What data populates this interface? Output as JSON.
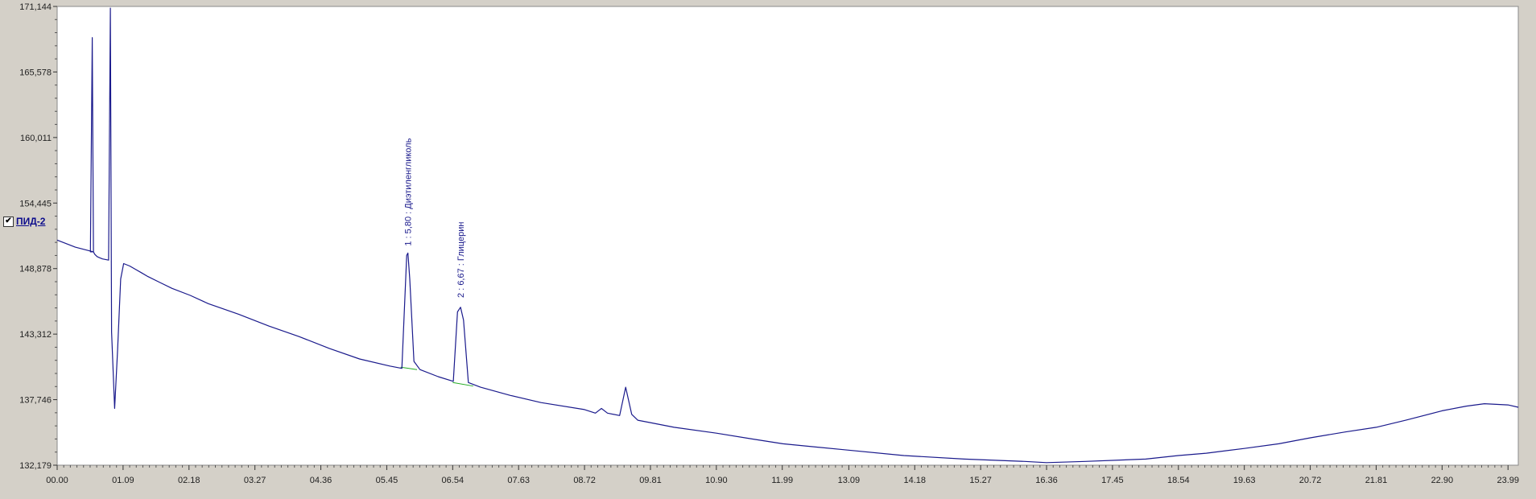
{
  "channel": {
    "label": "ПИД-2",
    "checked": true,
    "check_glyph": "✔"
  },
  "colors": {
    "background": "#d4d0c8",
    "plot_bg": "#ffffff",
    "signal": "#1a1a8c",
    "baseline": "#22aa22"
  },
  "chart_data": {
    "type": "line",
    "xlim": [
      0.0,
      24.16
    ],
    "ylim": [
      132.179,
      171.144
    ],
    "x_ticks": [
      "00.00",
      "01.09",
      "02.18",
      "03.27",
      "04.36",
      "05.45",
      "06.54",
      "07.63",
      "08.72",
      "09.81",
      "10.90",
      "11.99",
      "13.09",
      "14.18",
      "15.27",
      "16.36",
      "17.45",
      "18.54",
      "19.63",
      "20.72",
      "21.81",
      "22.90",
      "23.99"
    ],
    "y_ticks": [
      "171,144",
      "165,578",
      "160,011",
      "154,445",
      "148,878",
      "143,312",
      "137,746",
      "132,179"
    ],
    "grid": false,
    "series": [
      {
        "color": "#1a1a8c",
        "x": [
          0.0,
          0.3,
          0.6,
          0.55,
          0.58,
          0.6,
          0.62,
          0.66,
          0.7,
          0.75,
          0.85,
          0.88,
          0.9,
          0.95,
          1.0,
          1.05,
          1.1,
          1.2,
          1.3,
          1.4,
          1.5,
          1.7,
          1.9,
          2.2,
          2.5,
          3.0,
          3.5,
          4.0,
          4.5,
          5.0,
          5.5,
          5.7,
          5.78,
          5.8,
          5.83,
          5.9,
          6.0,
          6.3,
          6.55,
          6.62,
          6.67,
          6.72,
          6.8,
          7.0,
          7.5,
          8.0,
          8.72,
          8.9,
          9.0,
          9.1,
          9.3,
          9.4,
          9.5,
          9.6,
          9.8,
          10.2,
          10.9,
          11.5,
          12.0,
          13.0,
          14.0,
          15.0,
          16.0,
          16.36,
          17.0,
          18.0,
          18.54,
          19.0,
          19.63,
          20.2,
          20.72,
          21.3,
          21.81,
          22.3,
          22.9,
          23.3,
          23.6,
          23.99,
          24.16
        ],
        "y": [
          151.3,
          150.7,
          150.3,
          150.3,
          168.5,
          150.3,
          150.1,
          149.9,
          149.8,
          149.7,
          149.6,
          171.0,
          143.5,
          137.0,
          142.0,
          148.0,
          149.3,
          149.1,
          148.8,
          148.5,
          148.2,
          147.7,
          147.2,
          146.6,
          145.9,
          145.0,
          144.0,
          143.1,
          142.1,
          141.2,
          140.6,
          140.4,
          150.0,
          150.2,
          148.0,
          141.0,
          140.3,
          139.7,
          139.3,
          145.2,
          145.6,
          144.5,
          139.2,
          138.8,
          138.1,
          137.5,
          136.9,
          136.6,
          137.0,
          136.6,
          136.4,
          138.8,
          136.5,
          136.0,
          135.8,
          135.4,
          134.9,
          134.4,
          134.0,
          133.5,
          133.0,
          132.7,
          132.5,
          132.4,
          132.5,
          132.7,
          133.0,
          133.2,
          133.6,
          134.0,
          134.5,
          135.0,
          135.4,
          136.0,
          136.8,
          137.2,
          137.4,
          137.3,
          137.1
        ]
      }
    ],
    "baselines": [
      {
        "x": [
          5.68,
          5.95
        ],
        "y": [
          140.5,
          140.3
        ],
        "color": "#22aa22"
      },
      {
        "x": [
          6.54,
          6.88
        ],
        "y": [
          139.2,
          138.9
        ],
        "color": "#22aa22"
      }
    ],
    "annotations": [
      {
        "text": "1 : 5,80 : Диэтиленгликоль",
        "x": 5.8,
        "y": 150.8
      },
      {
        "text": "2 : 6,67 : Глицерин",
        "x": 6.67,
        "y": 146.4
      }
    ]
  }
}
